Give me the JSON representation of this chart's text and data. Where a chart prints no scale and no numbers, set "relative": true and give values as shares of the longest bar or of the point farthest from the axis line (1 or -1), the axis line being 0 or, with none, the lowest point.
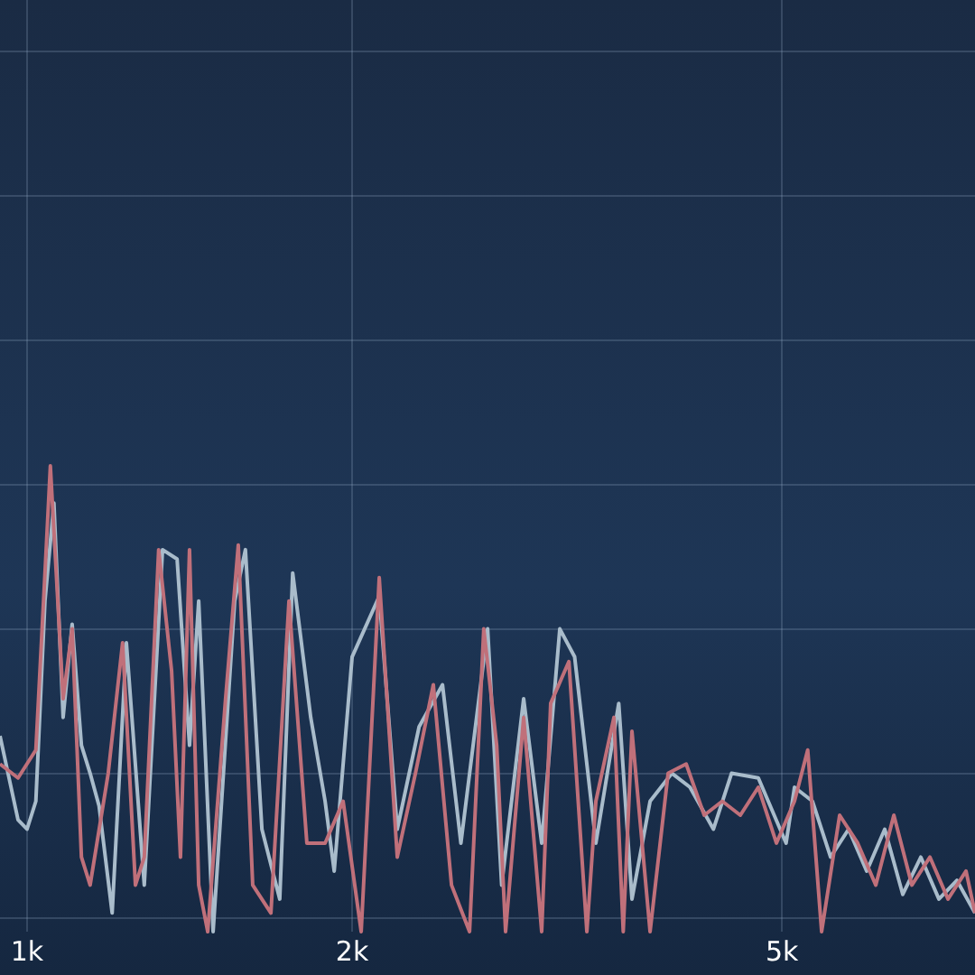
{
  "chart_data": {
    "type": "line",
    "relative": true,
    "log": "x",
    "grid": true,
    "tick_labels": "x",
    "marker": "none",
    "line_style": "solid",
    "legend": false,
    "xlim": [
      944,
      7547
    ],
    "xticks": [
      {
        "value": 1000,
        "label": "1k"
      },
      {
        "value": 2000,
        "label": "2k"
      },
      {
        "value": 5000,
        "label": "5k"
      }
    ],
    "series": [
      {
        "color": "#c0707a",
        "x": [
          944,
          981,
          1019,
          1039,
          1051,
          1080,
          1101,
          1123,
          1144,
          1189,
          1226,
          1260,
          1284,
          1324,
          1361,
          1387,
          1414,
          1442,
          1470,
          1527,
          1569,
          1618,
          1682,
          1748,
          1816,
          1888,
          1962,
          2039,
          2119,
          2202,
          2289,
          2378,
          2472,
          2569,
          2648,
          2722,
          2774,
          2883,
          2996,
          3054,
          3175,
          3299,
          3363,
          3495,
          3565,
          3632,
          3775,
          3923,
          4077,
          4237,
          4403,
          4576,
          4755,
          4942,
          5136,
          5283,
          5442,
          5655,
          5877,
          6108,
          6348,
          6597,
          6856,
          7125,
          7404,
          7547
        ],
        "values": [
          0.36,
          0.33,
          0.39,
          0.77,
          1,
          0.5,
          0.65,
          0.16,
          0.1,
          0.34,
          0.62,
          0.1,
          0.16,
          0.82,
          0.56,
          0.16,
          0.82,
          0.1,
          0,
          0.5,
          0.83,
          0.1,
          0.04,
          0.71,
          0.19,
          0.19,
          0.28,
          0,
          0.76,
          0.16,
          0.34,
          0.53,
          0.1,
          0,
          0.65,
          0.4,
          0,
          0.46,
          0,
          0.49,
          0.58,
          0,
          0.28,
          0.46,
          0,
          0.43,
          0,
          0.34,
          0.36,
          0.25,
          0.28,
          0.25,
          0.31,
          0.19,
          0.28,
          0.39,
          0,
          0.25,
          0.19,
          0.1,
          0.25,
          0.1,
          0.16,
          0.07,
          0.13,
          0.04
        ]
      },
      {
        "color": "#a9bccb",
        "x": [
          944,
          981,
          1000,
          1019,
          1039,
          1059,
          1080,
          1101,
          1123,
          1144,
          1166,
          1199,
          1236,
          1284,
          1335,
          1377,
          1414,
          1442,
          1487,
          1557,
          1593,
          1650,
          1714,
          1762,
          1831,
          1888,
          1925,
          2000,
          2119,
          2202,
          2307,
          2425,
          2522,
          2670,
          2751,
          2883,
          2996,
          3114,
          3214,
          3363,
          3531,
          3632,
          3775,
          3955,
          4110,
          4321,
          4491,
          4755,
          5045,
          5136,
          5337,
          5547,
          5764,
          5991,
          6226,
          6470,
          6724,
          6988,
          7262,
          7547
        ],
        "values": [
          0.42,
          0.24,
          0.22,
          0.28,
          0.71,
          0.92,
          0.46,
          0.66,
          0.4,
          0.34,
          0.27,
          0.04,
          0.62,
          0.1,
          0.82,
          0.8,
          0.4,
          0.71,
          0,
          0.71,
          0.82,
          0.22,
          0.07,
          0.77,
          0.46,
          0.28,
          0.13,
          0.59,
          0.72,
          0.22,
          0.44,
          0.53,
          0.19,
          0.65,
          0.1,
          0.5,
          0.19,
          0.65,
          0.59,
          0.19,
          0.49,
          0.07,
          0.28,
          0.34,
          0.31,
          0.22,
          0.34,
          0.33,
          0.19,
          0.31,
          0.28,
          0.16,
          0.22,
          0.13,
          0.22,
          0.08,
          0.16,
          0.07,
          0.11,
          0.04
        ]
      }
    ]
  }
}
